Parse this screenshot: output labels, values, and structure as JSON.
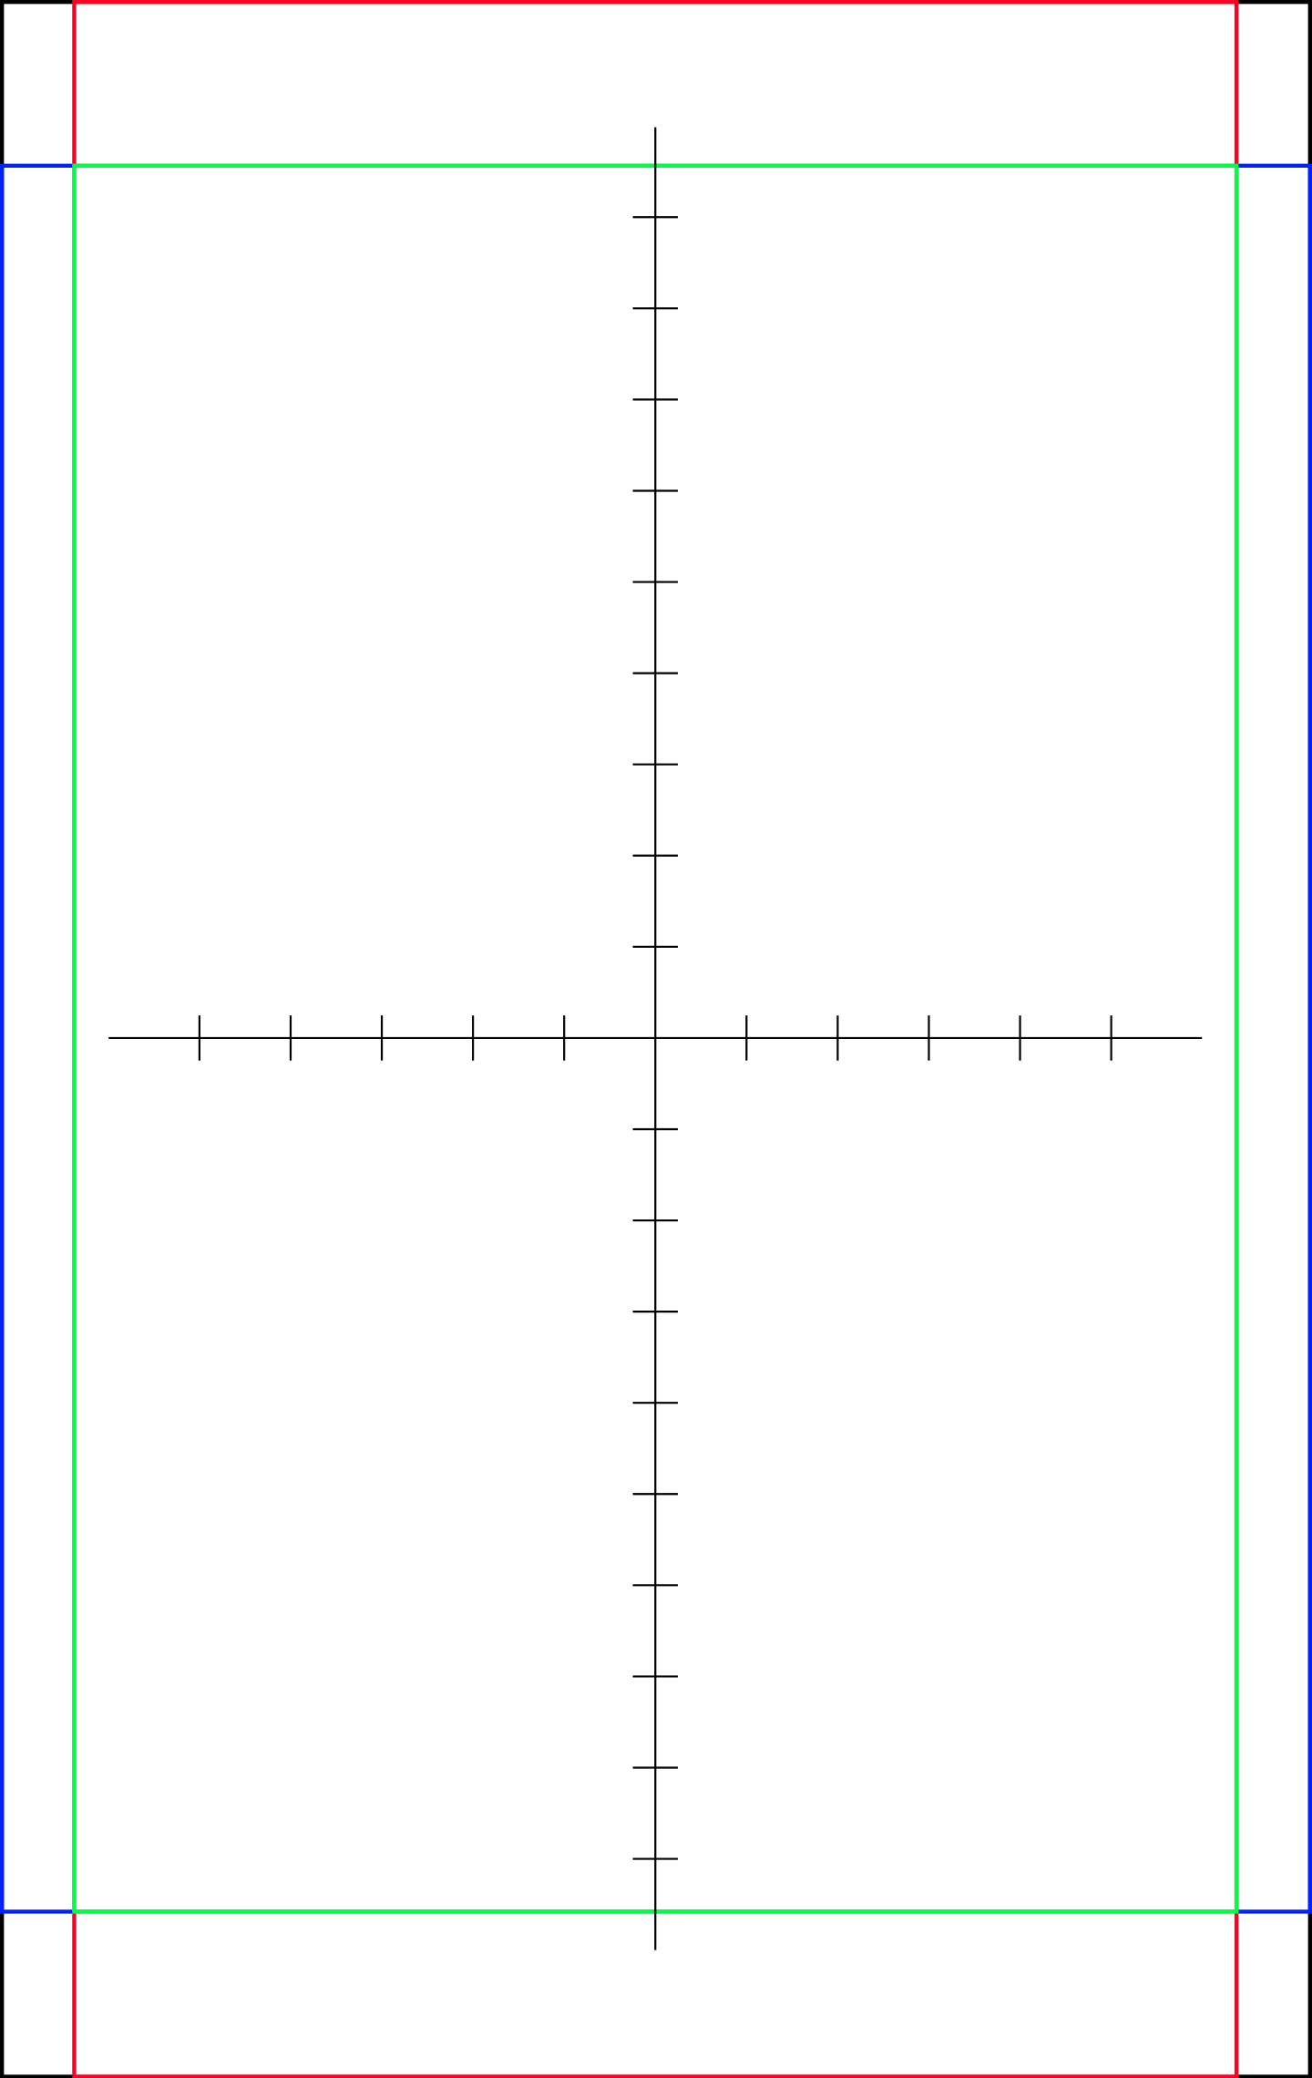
{
  "figure": {
    "colors": {
      "background": "#ffffff",
      "outer_border": "#000000",
      "red_frame": "#ff0022",
      "blue_frame": "#0022ff",
      "green_frame": "#00ff44",
      "axes": "#000000"
    },
    "axes": {
      "x_ticks": {
        "negative": 5,
        "positive": 5
      },
      "y_ticks": {
        "positive": 9,
        "negative": 9
      },
      "tick_labels": false,
      "grid": false
    },
    "frames": [
      {
        "name": "outer-border",
        "color_key": "outer_border"
      },
      {
        "name": "red-frame",
        "color_key": "red_frame"
      },
      {
        "name": "blue-frame",
        "color_key": "blue_frame"
      },
      {
        "name": "green-frame",
        "color_key": "green_frame"
      }
    ]
  }
}
